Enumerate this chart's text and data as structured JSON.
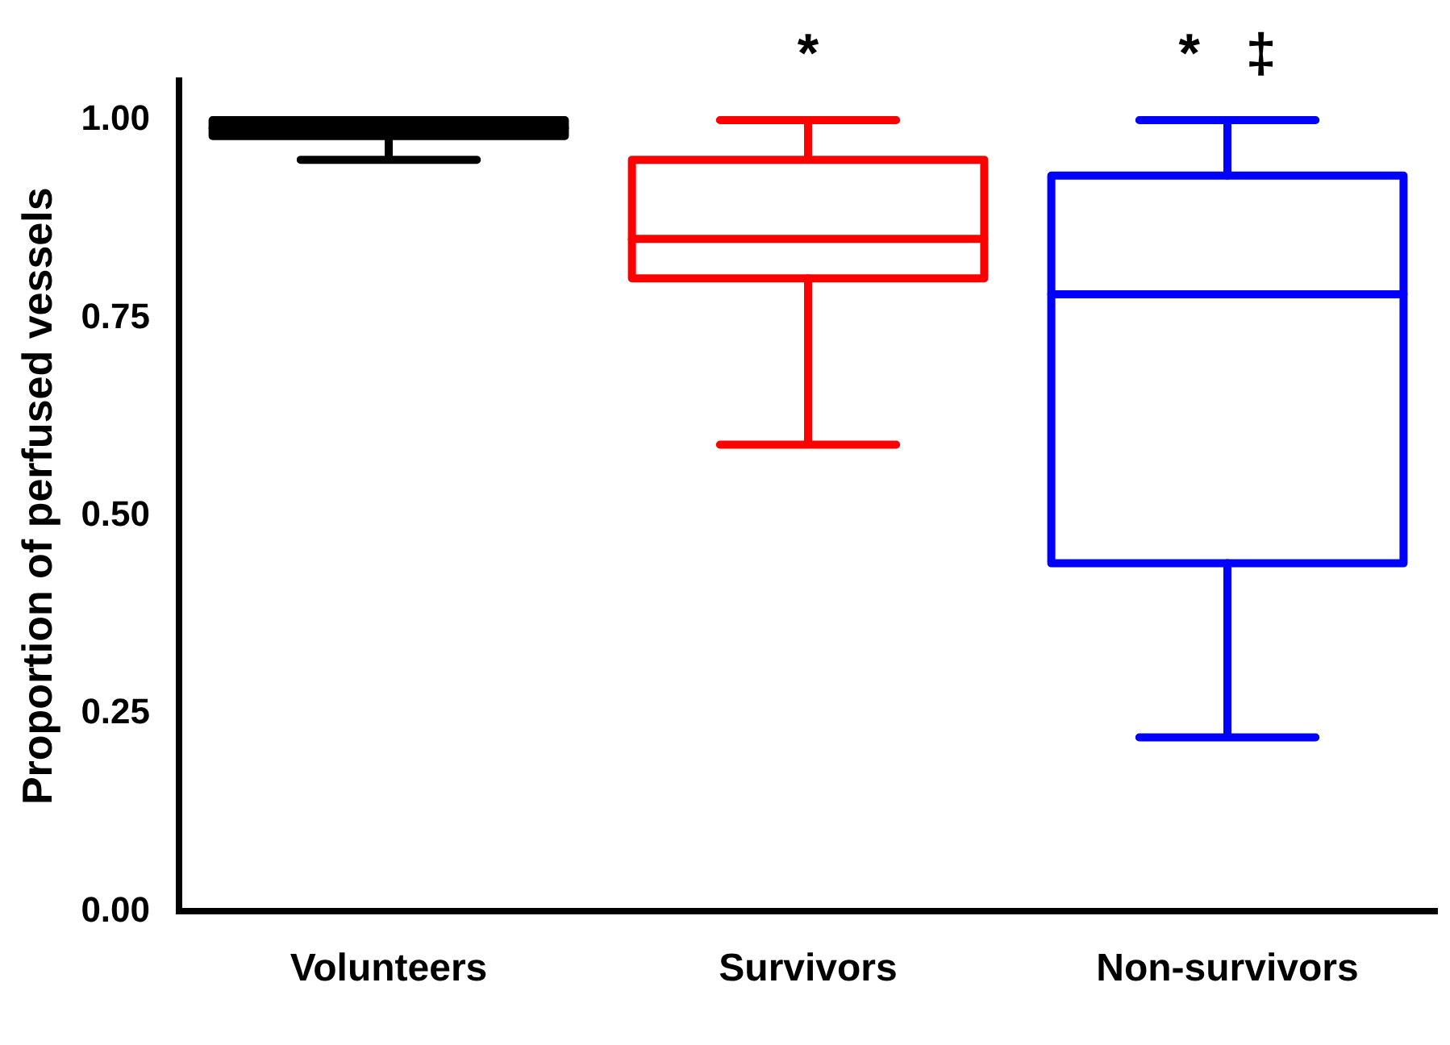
{
  "chart_data": {
    "type": "box",
    "ylabel": "Proportion of perfused vessels",
    "categories": [
      "Volunteers",
      "Survivors",
      "Non-survivors"
    ],
    "colors": [
      "#000000",
      "#ff0000",
      "#0000ff"
    ],
    "boxes": [
      {
        "low": 0.95,
        "q1": 0.98,
        "median": 0.99,
        "q3": 1.0,
        "high": 1.0
      },
      {
        "low": 0.59,
        "q1": 0.8,
        "median": 0.85,
        "q3": 0.95,
        "high": 1.0
      },
      {
        "low": 0.22,
        "q1": 0.44,
        "median": 0.78,
        "q3": 0.93,
        "high": 1.0
      }
    ],
    "ylim": [
      0,
      1.05
    ],
    "yticks": [
      {
        "value": 0,
        "label": "0.00"
      },
      {
        "value": 0.25,
        "label": "0.25"
      },
      {
        "value": 0.5,
        "label": "0.50"
      },
      {
        "value": 0.75,
        "label": "0.75"
      },
      {
        "value": 1,
        "label": "1.00"
      }
    ],
    "annotations": [
      "*",
      "*   ‡"
    ],
    "grid": false,
    "legend": false
  }
}
